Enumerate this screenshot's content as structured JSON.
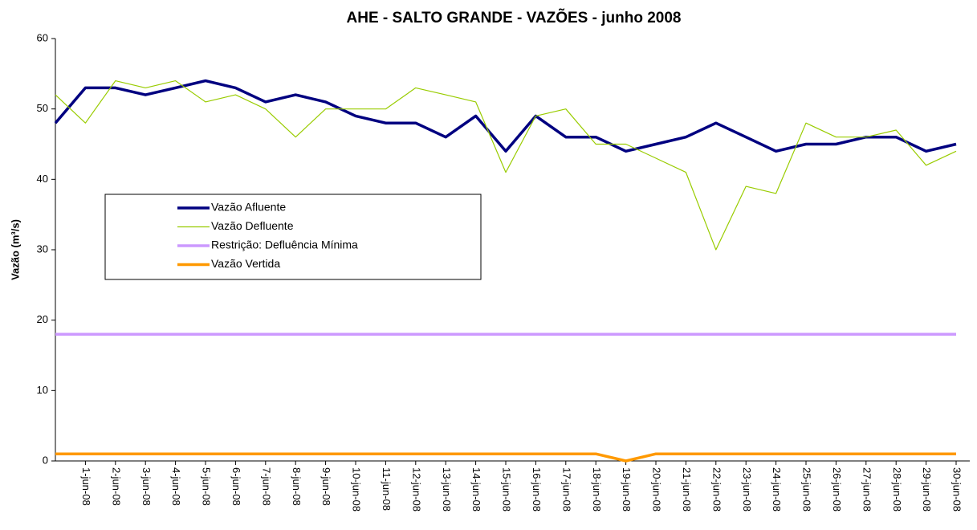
{
  "chart_data": {
    "type": "line",
    "title": "AHE - SALTO GRANDE - VAZÕES - junho 2008",
    "y_label": "Vazão (m³/s)",
    "categories": [
      null,
      "1-jun-08",
      "2-jun-08",
      "3-jun-08",
      "4-jun-08",
      "5-jun-08",
      "6-jun-08",
      "7-jun-08",
      "8-jun-08",
      "9-jun-08",
      "10-jun-08",
      "11-jun-08",
      "12-jun-08",
      "13-jun-08",
      "14-jun-08",
      "15-jun-08",
      "16-jun-08",
      "17-jun-08",
      "18-jun-08",
      "19-jun-08",
      "20-jun-08",
      "21-jun-08",
      "22-jun-08",
      "23-jun-08",
      "24-jun-08",
      "25-jun-08",
      "26-jun-08",
      "27-jun-08",
      "28-jun-08",
      "29-jun-08",
      "30-jun-08"
    ],
    "series": [
      {
        "name": "Vazão Afluente",
        "color": "#000080",
        "width": 3.5,
        "values": [
          48,
          53,
          53,
          52,
          53,
          54,
          53,
          51,
          52,
          51,
          49,
          48,
          48,
          46,
          49,
          44,
          49,
          46,
          46,
          44,
          45,
          46,
          48,
          46,
          44,
          45,
          45,
          46,
          46,
          44,
          45
        ]
      },
      {
        "name": "Vazão Defluente",
        "color": "#99cc00",
        "width": 1.2,
        "values": [
          52,
          48,
          54,
          53,
          54,
          51,
          52,
          50,
          46,
          50,
          50,
          50,
          53,
          52,
          51,
          41,
          49,
          50,
          45,
          45,
          43,
          41,
          30,
          39,
          38,
          48,
          46,
          46,
          47,
          42,
          44
        ]
      },
      {
        "name": "Restrição: Defluência Mínima",
        "color": "#cc99ff",
        "width": 3.5,
        "values": [
          18,
          18,
          18,
          18,
          18,
          18,
          18,
          18,
          18,
          18,
          18,
          18,
          18,
          18,
          18,
          18,
          18,
          18,
          18,
          18,
          18,
          18,
          18,
          18,
          18,
          18,
          18,
          18,
          18,
          18,
          18
        ]
      },
      {
        "name": "Vazão Vertida",
        "color": "#ff9900",
        "width": 3.5,
        "values": [
          1,
          1,
          1,
          1,
          1,
          1,
          1,
          1,
          1,
          1,
          1,
          1,
          1,
          1,
          1,
          1,
          1,
          1,
          1,
          0,
          1,
          1,
          1,
          1,
          1,
          1,
          1,
          1,
          1,
          1,
          1
        ]
      }
    ],
    "ylim": [
      0,
      60
    ],
    "yticks": [
      0,
      10,
      20,
      30,
      40,
      50,
      60
    ],
    "grid": false
  }
}
